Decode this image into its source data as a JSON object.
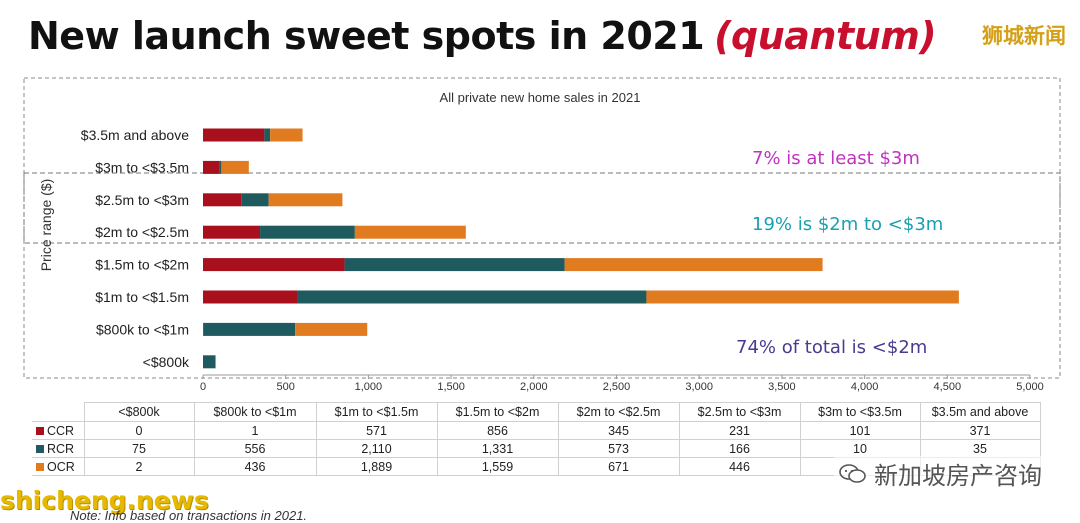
{
  "title_main": "New launch sweet spots in 2021",
  "title_accent": "(quantum)",
  "watermark_top": "狮城新闻",
  "watermark_left": "shicheng.news",
  "watermark_right": "新加坡房产咨询",
  "note": "Note: Info based on transactions in 2021.",
  "colors": {
    "CCR": "#a8101e",
    "RCR": "#1e5a5e",
    "OCR": "#e07b20"
  },
  "chart_data": {
    "type": "bar",
    "orientation": "horizontal",
    "stacked": true,
    "title": "All private new home sales in 2021",
    "ylabel": "Price range ($)",
    "xlabel": "",
    "xlim": [
      0,
      5000
    ],
    "xticks": [
      "0",
      "500",
      "1,000",
      "1,500",
      "2,000",
      "2,500",
      "3,000",
      "3,500",
      "4,000",
      "4,500",
      "5,000"
    ],
    "xtick_values": [
      0,
      500,
      1000,
      1500,
      2000,
      2500,
      3000,
      3500,
      4000,
      4500,
      5000
    ],
    "categories": [
      "<$800k",
      "$800k to <$1m",
      "$1m to <$1.5m",
      "$1.5m to <$2m",
      "$2m to <$2.5m",
      "$2.5m to <$3m",
      "$3m to <$3.5m",
      "$3.5m and above"
    ],
    "series": [
      {
        "name": "CCR",
        "values": [
          0,
          1,
          571,
          856,
          345,
          231,
          101,
          371
        ],
        "display": [
          "0",
          "1",
          "571",
          "856",
          "345",
          "231",
          "101",
          "371"
        ]
      },
      {
        "name": "RCR",
        "values": [
          75,
          556,
          2110,
          1331,
          573,
          166,
          10,
          35
        ],
        "display": [
          "75",
          "556",
          "2,110",
          "1,331",
          "573",
          "166",
          "10",
          "35"
        ]
      },
      {
        "name": "OCR",
        "values": [
          2,
          436,
          1889,
          1559,
          671,
          446,
          166,
          196
        ],
        "display": [
          "2",
          "436",
          "1,889",
          "1,559",
          "671",
          "446",
          "",
          ""
        ]
      }
    ],
    "annotations": [
      "7% is at least $3m",
      "19% is $2m to <$3m",
      "74% of total is <$2m"
    ],
    "grid": false,
    "legend": "table-below"
  }
}
